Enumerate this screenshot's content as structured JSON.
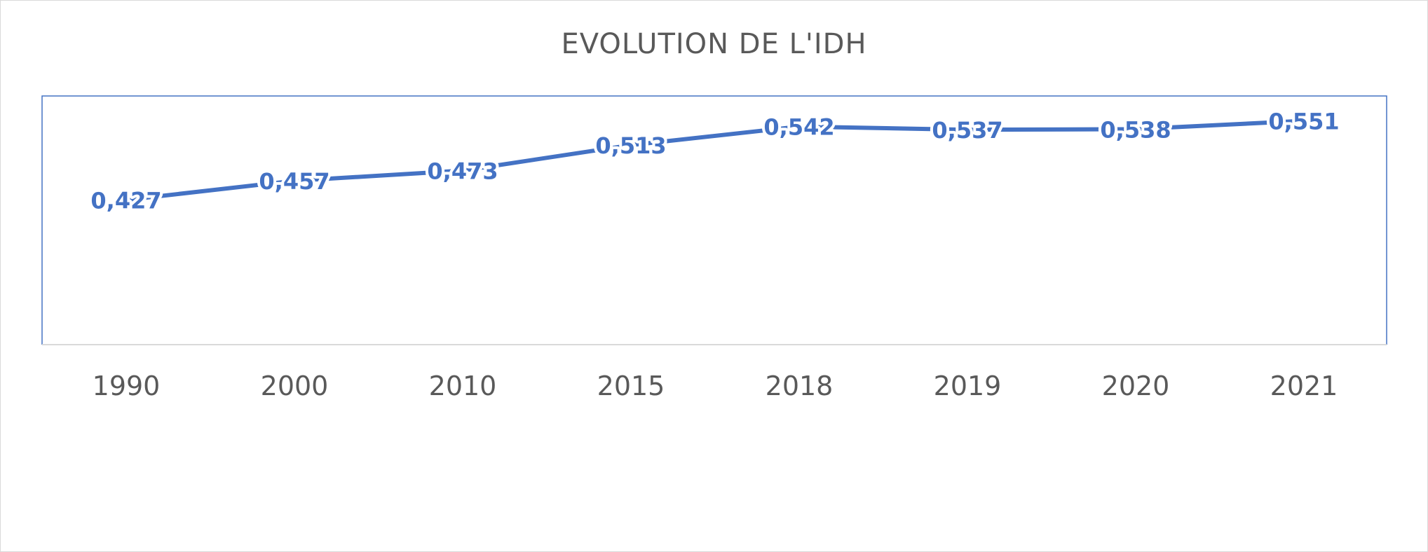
{
  "chart_data": {
    "type": "line",
    "title": "EVOLUTION DE L'IDH",
    "xlabel": "",
    "ylabel": "",
    "categories": [
      "1990",
      "2000",
      "2010",
      "2015",
      "2018",
      "2019",
      "2020",
      "2021"
    ],
    "series": [
      {
        "values": [
          0.427,
          0.457,
          0.473,
          0.513,
          0.542,
          0.537,
          0.538,
          0.551
        ],
        "labels": [
          "0,427",
          "0,457",
          "0,473",
          "0,513",
          "0,542",
          "0,537",
          "0,538",
          "0,551"
        ]
      }
    ],
    "ylim": [
      0.2,
      0.59
    ],
    "grid": false,
    "legend": "none",
    "colors": {
      "line": "#4472c4",
      "plot_border": "#4472c4",
      "axis": "#d9d9d9",
      "text": "#595959"
    }
  }
}
